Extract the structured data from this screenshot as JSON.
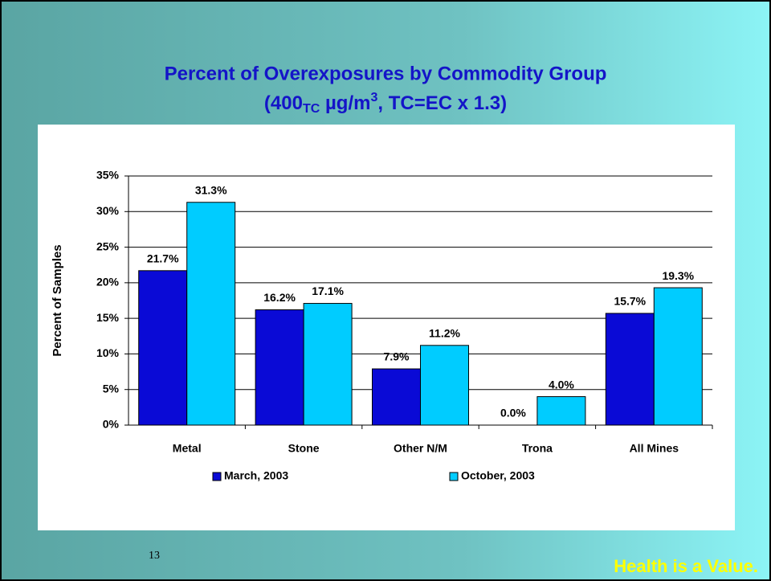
{
  "chart_data": {
    "type": "bar",
    "title": "Percent of Overexposures by Commodity Group",
    "subtitle_parts": [
      "(400",
      "TC",
      " µg/m",
      "3",
      ", TC=EC x 1.3)"
    ],
    "y_label": "Percent of Samples",
    "categories": [
      "Metal",
      "Stone",
      "Other N/M",
      "Trona",
      "All Mines"
    ],
    "series": [
      {
        "name": "March, 2003",
        "color": "#0a0ad6",
        "values": [
          21.7,
          16.2,
          7.9,
          0.0,
          15.7
        ],
        "value_labels": [
          "21.7%",
          "16.2%",
          "7.9%",
          "0.0%",
          "15.7%"
        ]
      },
      {
        "name": "October, 2003",
        "color": "#00ccff",
        "values": [
          31.3,
          17.1,
          11.2,
          4.0,
          19.3
        ],
        "value_labels": [
          "31.3%",
          "17.1%",
          "11.2%",
          "4.0%",
          "19.3%"
        ]
      }
    ],
    "ylim": [
      0,
      35
    ],
    "yticks": [
      {
        "value": 0,
        "label": "0%"
      },
      {
        "value": 5,
        "label": "5%"
      },
      {
        "value": 10,
        "label": "10%"
      },
      {
        "value": 15,
        "label": "15%"
      },
      {
        "value": 20,
        "label": "20%"
      },
      {
        "value": 25,
        "label": "25%"
      },
      {
        "value": 30,
        "label": "30%"
      },
      {
        "value": 35,
        "label": "35%"
      }
    ],
    "grid": true,
    "legend": "bottom"
  },
  "slide": {
    "page_number": "13",
    "footer": "Health is a Value."
  }
}
